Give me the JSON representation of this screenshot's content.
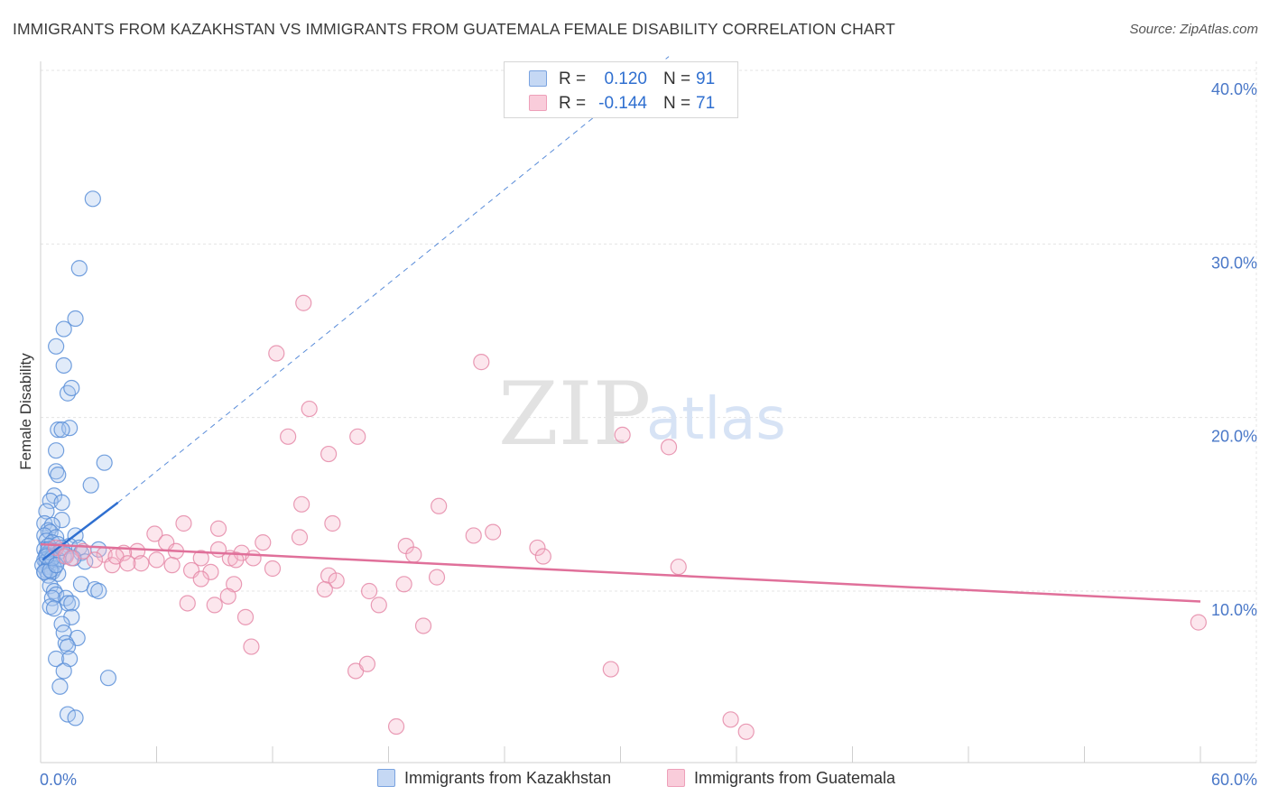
{
  "title": "IMMIGRANTS FROM KAZAKHSTAN VS IMMIGRANTS FROM GUATEMALA FEMALE DISABILITY CORRELATION CHART",
  "source": "Source: ZipAtlas.com",
  "watermark": {
    "zip": "ZIP",
    "atlas": "atlas"
  },
  "colors": {
    "kazakhstan_fill": "#a9c6ef",
    "kazakhstan_stroke": "#5b8fd8",
    "kazakhstan_line": "#2f6fd0",
    "guatemala_fill": "#f6b8cb",
    "guatemala_stroke": "#e58aa8",
    "guatemala_line": "#e0709a",
    "axis_label": "#4a78c8",
    "grid": "#e4e4e4"
  },
  "legend": {
    "rows": [
      {
        "r_label": "R =",
        "r_value": "0.120",
        "n_label": "N =",
        "n_value": "91"
      },
      {
        "r_label": "R =",
        "r_value": "-0.144",
        "n_label": "N =",
        "n_value": "71"
      }
    ]
  },
  "bottom_legend": {
    "kazakhstan": "Immigrants from Kazakhstan",
    "guatemala": "Immigrants from Guatemala"
  },
  "chart_data": {
    "type": "scatter",
    "title": "IMMIGRANTS FROM KAZAKHSTAN VS IMMIGRANTS FROM GUATEMALA FEMALE DISABILITY CORRELATION CHART",
    "xlabel": "",
    "ylabel": "Female Disability",
    "xlim": [
      0,
      60
    ],
    "ylim": [
      0,
      41
    ],
    "x_tick_labels": [
      "0.0%",
      "60.0%"
    ],
    "y_ticks": [
      10,
      20,
      30,
      40
    ],
    "y_tick_labels": [
      "10.0%",
      "20.0%",
      "30.0%",
      "40.0%"
    ],
    "grid": true,
    "series": [
      {
        "name": "Immigrants from Kazakhstan",
        "R": 0.12,
        "N": 91,
        "trend": {
          "x": [
            0.1,
            4.0
          ],
          "y": [
            11.8,
            15.1
          ]
        },
        "trend_extended": {
          "x": [
            4.0,
            32.5
          ],
          "y": [
            15.1,
            40.8
          ]
        },
        "points": [
          [
            2.7,
            32.6
          ],
          [
            2.0,
            28.6
          ],
          [
            1.8,
            25.7
          ],
          [
            1.2,
            25.1
          ],
          [
            0.8,
            24.1
          ],
          [
            1.2,
            23.0
          ],
          [
            1.4,
            21.4
          ],
          [
            1.6,
            21.7
          ],
          [
            0.9,
            19.3
          ],
          [
            1.5,
            19.4
          ],
          [
            1.1,
            19.3
          ],
          [
            0.8,
            18.1
          ],
          [
            3.3,
            17.4
          ],
          [
            0.8,
            16.9
          ],
          [
            0.9,
            16.7
          ],
          [
            2.6,
            16.1
          ],
          [
            0.7,
            15.5
          ],
          [
            0.5,
            15.2
          ],
          [
            1.1,
            15.1
          ],
          [
            0.3,
            14.6
          ],
          [
            1.1,
            14.1
          ],
          [
            0.2,
            13.9
          ],
          [
            0.6,
            13.8
          ],
          [
            0.4,
            13.5
          ],
          [
            0.5,
            13.4
          ],
          [
            0.2,
            13.2
          ],
          [
            1.8,
            13.2
          ],
          [
            0.8,
            13.1
          ],
          [
            0.3,
            12.9
          ],
          [
            0.6,
            12.8
          ],
          [
            0.9,
            12.7
          ],
          [
            0.4,
            12.6
          ],
          [
            1.5,
            12.6
          ],
          [
            2.0,
            12.5
          ],
          [
            3.0,
            12.4
          ],
          [
            0.2,
            12.4
          ],
          [
            0.5,
            12.3
          ],
          [
            0.7,
            12.3
          ],
          [
            1.0,
            12.3
          ],
          [
            2.1,
            12.2
          ],
          [
            0.3,
            12.1
          ],
          [
            1.3,
            12.1
          ],
          [
            0.6,
            12.0
          ],
          [
            1.2,
            12.0
          ],
          [
            0.4,
            11.9
          ],
          [
            0.2,
            11.8
          ],
          [
            0.9,
            11.8
          ],
          [
            0.3,
            11.7
          ],
          [
            0.5,
            11.6
          ],
          [
            2.3,
            11.7
          ],
          [
            0.1,
            11.5
          ],
          [
            0.4,
            11.4
          ],
          [
            0.7,
            11.3
          ],
          [
            0.3,
            11.2
          ],
          [
            0.2,
            11.1
          ],
          [
            0.6,
            11.1
          ],
          [
            0.9,
            11.0
          ],
          [
            0.4,
            10.9
          ],
          [
            0.2,
            11.1
          ],
          [
            0.5,
            11.2
          ],
          [
            2.1,
            10.4
          ],
          [
            2.8,
            10.1
          ],
          [
            3.0,
            10.0
          ],
          [
            0.5,
            10.3
          ],
          [
            0.7,
            10.0
          ],
          [
            0.8,
            9.8
          ],
          [
            1.3,
            9.6
          ],
          [
            0.6,
            9.6
          ],
          [
            1.4,
            9.3
          ],
          [
            1.6,
            9.3
          ],
          [
            0.5,
            9.1
          ],
          [
            0.7,
            9.0
          ],
          [
            1.6,
            8.5
          ],
          [
            1.1,
            8.1
          ],
          [
            1.2,
            7.6
          ],
          [
            1.9,
            7.3
          ],
          [
            1.3,
            7.0
          ],
          [
            1.4,
            6.8
          ],
          [
            0.8,
            6.1
          ],
          [
            1.5,
            6.1
          ],
          [
            1.2,
            5.4
          ],
          [
            3.5,
            5.0
          ],
          [
            1.0,
            4.5
          ],
          [
            1.4,
            2.9
          ],
          [
            1.8,
            2.7
          ],
          [
            0.4,
            12.4
          ],
          [
            0.6,
            11.9
          ],
          [
            1.1,
            12.5
          ],
          [
            0.3,
            12.0
          ],
          [
            0.8,
            11.5
          ],
          [
            1.7,
            11.9
          ]
        ]
      },
      {
        "name": "Immigrants from Guatemala",
        "R": -0.144,
        "N": 71,
        "trend": {
          "x": [
            0.0,
            60.0
          ],
          "y": [
            12.7,
            9.4
          ]
        },
        "points": [
          [
            13.6,
            26.6
          ],
          [
            12.2,
            23.7
          ],
          [
            22.8,
            23.2
          ],
          [
            13.9,
            20.5
          ],
          [
            12.8,
            18.9
          ],
          [
            16.4,
            18.9
          ],
          [
            30.1,
            19.0
          ],
          [
            32.5,
            18.3
          ],
          [
            14.9,
            17.9
          ],
          [
            13.5,
            15.0
          ],
          [
            20.6,
            14.9
          ],
          [
            5.9,
            13.3
          ],
          [
            7.4,
            13.9
          ],
          [
            9.2,
            13.6
          ],
          [
            13.4,
            13.1
          ],
          [
            15.1,
            13.9
          ],
          [
            23.4,
            13.4
          ],
          [
            5.0,
            12.3
          ],
          [
            4.3,
            12.2
          ],
          [
            6.5,
            12.8
          ],
          [
            7.0,
            12.3
          ],
          [
            8.3,
            11.9
          ],
          [
            9.8,
            11.9
          ],
          [
            11.5,
            12.8
          ],
          [
            9.2,
            12.4
          ],
          [
            10.4,
            12.2
          ],
          [
            18.9,
            12.6
          ],
          [
            25.7,
            12.5
          ],
          [
            19.3,
            12.1
          ],
          [
            3.3,
            12.1
          ],
          [
            3.7,
            11.5
          ],
          [
            2.8,
            11.8
          ],
          [
            5.2,
            11.6
          ],
          [
            6.0,
            11.8
          ],
          [
            7.8,
            11.2
          ],
          [
            8.8,
            11.1
          ],
          [
            10.1,
            11.8
          ],
          [
            11.0,
            11.9
          ],
          [
            12.0,
            11.3
          ],
          [
            14.9,
            10.9
          ],
          [
            15.3,
            10.6
          ],
          [
            18.8,
            10.4
          ],
          [
            20.5,
            10.8
          ],
          [
            33.0,
            11.4
          ],
          [
            8.3,
            10.7
          ],
          [
            10.0,
            10.4
          ],
          [
            14.7,
            10.1
          ],
          [
            17.0,
            10.0
          ],
          [
            7.6,
            9.3
          ],
          [
            9.0,
            9.2
          ],
          [
            9.7,
            9.7
          ],
          [
            17.5,
            9.2
          ],
          [
            10.6,
            8.5
          ],
          [
            19.8,
            8.0
          ],
          [
            10.9,
            6.8
          ],
          [
            16.3,
            5.4
          ],
          [
            16.9,
            5.8
          ],
          [
            29.5,
            5.5
          ],
          [
            18.4,
            2.2
          ],
          [
            35.7,
            2.6
          ],
          [
            36.5,
            1.9
          ],
          [
            59.9,
            8.2
          ],
          [
            0.8,
            12.5
          ],
          [
            1.3,
            12.0
          ],
          [
            2.2,
            12.3
          ],
          [
            3.9,
            12.0
          ],
          [
            4.5,
            11.6
          ],
          [
            1.6,
            11.9
          ],
          [
            22.4,
            13.2
          ],
          [
            26.0,
            12.0
          ],
          [
            6.8,
            11.5
          ]
        ]
      }
    ]
  }
}
